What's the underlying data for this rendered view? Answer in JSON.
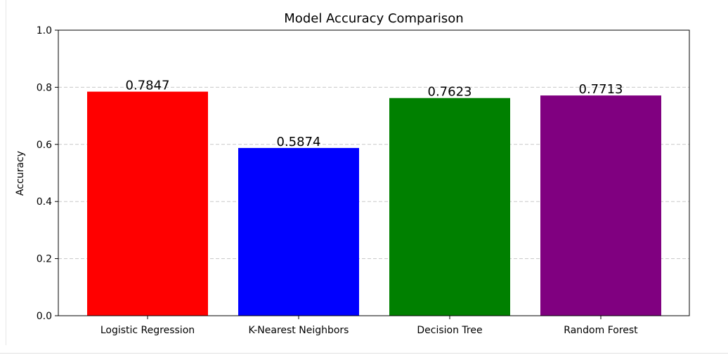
{
  "chart_data": {
    "type": "bar",
    "title": "Model Accuracy Comparison",
    "xlabel": "",
    "ylabel": "Accuracy",
    "categories": [
      "Logistic Regression",
      "K-Nearest Neighbors",
      "Decision Tree",
      "Random Forest"
    ],
    "values": [
      0.7847,
      0.5874,
      0.7623,
      0.7713
    ],
    "value_labels": [
      "0.7847",
      "0.5874",
      "0.7623",
      "0.7713"
    ],
    "colors": [
      "#ff0000",
      "#0000ff",
      "#008000",
      "#800080"
    ],
    "ylim": [
      0,
      1.0
    ],
    "yticks": [
      0.0,
      0.2,
      0.4,
      0.6,
      0.8,
      1.0
    ],
    "ytick_labels": [
      "0.0",
      "0.2",
      "0.4",
      "0.6",
      "0.8",
      "1.0"
    ],
    "grid": {
      "axis": "y",
      "style": "dashed",
      "color": "#c8c8c8"
    },
    "legend": "none"
  }
}
